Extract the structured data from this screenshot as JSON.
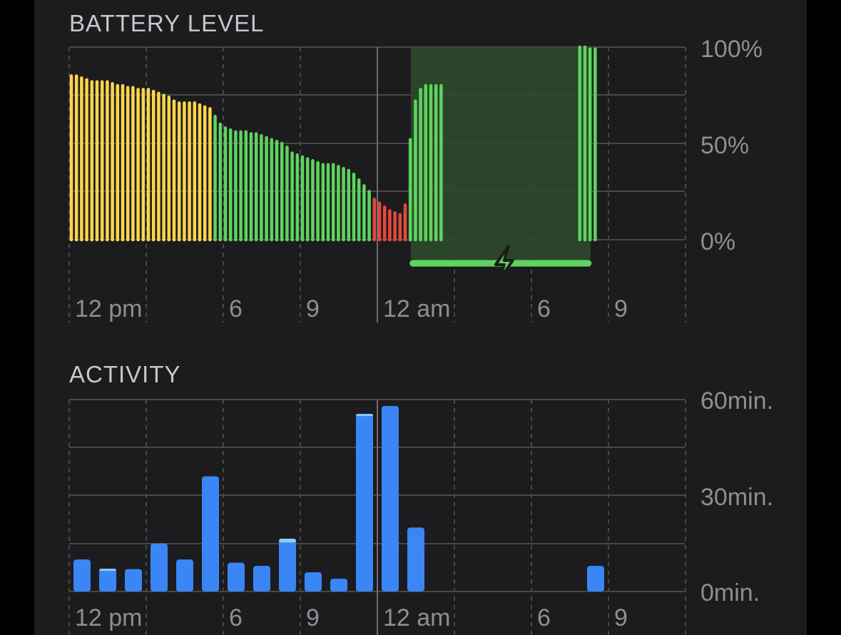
{
  "colors": {
    "background": "#1c1c1e",
    "yellow": "#fcd54b",
    "green": "#5fd35f",
    "red": "#e5483c",
    "blue": "#3a86f5",
    "light_blue": "#8ecaf9",
    "charging_fill": "#2e4a2c",
    "grid": "#48484a",
    "text": "#8e8e93"
  },
  "icons": {
    "charging": "lightning-bolt-icon"
  },
  "battery": {
    "title": "BATTERY LEVEL"
  },
  "activity": {
    "title": "ACTIVITY"
  },
  "chart_data": [
    {
      "type": "bar",
      "title": "BATTERY LEVEL",
      "x_tick_labels": [
        "12 pm",
        "6",
        "9",
        "12 am",
        "6",
        "9"
      ],
      "y_tick_labels": [
        "100%",
        "50%",
        "0%"
      ],
      "ylim": [
        0,
        100
      ],
      "x_unit": "hours",
      "x_range": [
        12,
        36
      ],
      "grid": true,
      "charging_period": {
        "start_hour": 25.3,
        "end_hour": 32.3
      },
      "series": [
        {
          "values": [
            {
              "h": 12.0,
              "v": 85,
              "c": "yellow"
            },
            {
              "h": 12.2,
              "v": 85,
              "c": "yellow"
            },
            {
              "h": 12.4,
              "v": 84,
              "c": "yellow"
            },
            {
              "h": 12.6,
              "v": 83,
              "c": "yellow"
            },
            {
              "h": 12.8,
              "v": 82,
              "c": "yellow"
            },
            {
              "h": 13.0,
              "v": 82,
              "c": "yellow"
            },
            {
              "h": 13.2,
              "v": 82,
              "c": "yellow"
            },
            {
              "h": 13.4,
              "v": 82,
              "c": "yellow"
            },
            {
              "h": 13.6,
              "v": 81,
              "c": "yellow"
            },
            {
              "h": 13.8,
              "v": 80,
              "c": "yellow"
            },
            {
              "h": 14.0,
              "v": 80,
              "c": "yellow"
            },
            {
              "h": 14.2,
              "v": 79,
              "c": "yellow"
            },
            {
              "h": 14.4,
              "v": 79,
              "c": "yellow"
            },
            {
              "h": 14.6,
              "v": 78,
              "c": "yellow"
            },
            {
              "h": 14.8,
              "v": 78,
              "c": "yellow"
            },
            {
              "h": 15.0,
              "v": 78,
              "c": "yellow"
            },
            {
              "h": 15.2,
              "v": 77,
              "c": "yellow"
            },
            {
              "h": 15.4,
              "v": 76,
              "c": "yellow"
            },
            {
              "h": 15.6,
              "v": 75,
              "c": "yellow"
            },
            {
              "h": 15.8,
              "v": 74,
              "c": "yellow"
            },
            {
              "h": 16.0,
              "v": 72,
              "c": "yellow"
            },
            {
              "h": 16.2,
              "v": 71,
              "c": "yellow"
            },
            {
              "h": 16.4,
              "v": 71,
              "c": "yellow"
            },
            {
              "h": 16.6,
              "v": 71,
              "c": "yellow"
            },
            {
              "h": 16.8,
              "v": 71,
              "c": "yellow"
            },
            {
              "h": 17.0,
              "v": 70,
              "c": "yellow"
            },
            {
              "h": 17.2,
              "v": 69,
              "c": "yellow"
            },
            {
              "h": 17.4,
              "v": 68,
              "c": "yellow"
            },
            {
              "h": 17.6,
              "v": 64,
              "c": "green"
            },
            {
              "h": 17.8,
              "v": 60,
              "c": "green"
            },
            {
              "h": 18.0,
              "v": 58,
              "c": "green"
            },
            {
              "h": 18.2,
              "v": 57,
              "c": "green"
            },
            {
              "h": 18.4,
              "v": 56,
              "c": "green"
            },
            {
              "h": 18.6,
              "v": 56,
              "c": "green"
            },
            {
              "h": 18.8,
              "v": 56,
              "c": "green"
            },
            {
              "h": 19.0,
              "v": 55,
              "c": "green"
            },
            {
              "h": 19.2,
              "v": 55,
              "c": "green"
            },
            {
              "h": 19.4,
              "v": 54,
              "c": "green"
            },
            {
              "h": 19.6,
              "v": 53,
              "c": "green"
            },
            {
              "h": 19.8,
              "v": 52,
              "c": "green"
            },
            {
              "h": 20.0,
              "v": 51,
              "c": "green"
            },
            {
              "h": 20.2,
              "v": 50,
              "c": "green"
            },
            {
              "h": 20.4,
              "v": 48,
              "c": "green"
            },
            {
              "h": 20.6,
              "v": 45,
              "c": "green"
            },
            {
              "h": 20.8,
              "v": 44,
              "c": "green"
            },
            {
              "h": 21.0,
              "v": 43,
              "c": "green"
            },
            {
              "h": 21.2,
              "v": 42,
              "c": "green"
            },
            {
              "h": 21.4,
              "v": 41,
              "c": "green"
            },
            {
              "h": 21.6,
              "v": 40,
              "c": "green"
            },
            {
              "h": 21.8,
              "v": 39,
              "c": "green"
            },
            {
              "h": 22.0,
              "v": 39,
              "c": "green"
            },
            {
              "h": 22.2,
              "v": 39,
              "c": "green"
            },
            {
              "h": 22.4,
              "v": 38,
              "c": "green"
            },
            {
              "h": 22.6,
              "v": 37,
              "c": "green"
            },
            {
              "h": 22.8,
              "v": 36,
              "c": "green"
            },
            {
              "h": 23.0,
              "v": 34,
              "c": "green"
            },
            {
              "h": 23.2,
              "v": 31,
              "c": "green"
            },
            {
              "h": 23.4,
              "v": 28,
              "c": "green"
            },
            {
              "h": 23.6,
              "v": 25,
              "c": "green"
            },
            {
              "h": 23.8,
              "v": 21,
              "c": "red"
            },
            {
              "h": 24.0,
              "v": 19,
              "c": "red"
            },
            {
              "h": 24.2,
              "v": 17,
              "c": "red"
            },
            {
              "h": 24.4,
              "v": 15,
              "c": "red"
            },
            {
              "h": 24.6,
              "v": 14,
              "c": "red"
            },
            {
              "h": 24.8,
              "v": 13,
              "c": "red"
            },
            {
              "h": 25.0,
              "v": 18,
              "c": "red"
            },
            {
              "h": 25.2,
              "v": 52,
              "c": "green"
            },
            {
              "h": 25.4,
              "v": 72,
              "c": "green"
            },
            {
              "h": 25.6,
              "v": 78,
              "c": "green"
            },
            {
              "h": 25.8,
              "v": 80,
              "c": "green"
            },
            {
              "h": 26.0,
              "v": 80,
              "c": "green"
            },
            {
              "h": 26.2,
              "v": 80,
              "c": "green"
            },
            {
              "h": 26.4,
              "v": 80,
              "c": "green"
            },
            {
              "h": 31.8,
              "v": 100,
              "c": "green"
            },
            {
              "h": 32.0,
              "v": 100,
              "c": "green"
            },
            {
              "h": 32.2,
              "v": 99,
              "c": "green"
            },
            {
              "h": 32.4,
              "v": 99,
              "c": "green"
            }
          ]
        }
      ]
    },
    {
      "type": "bar",
      "title": "ACTIVITY",
      "x_tick_labels": [
        "12 pm",
        "6",
        "9",
        "12 am",
        "6",
        "9"
      ],
      "y_tick_labels": [
        "60min.",
        "30min.",
        "0min."
      ],
      "ylim": [
        0,
        60
      ],
      "x_unit": "hours",
      "x_range": [
        12,
        36
      ],
      "grid": true,
      "series": [
        {
          "bars": [
            {
              "h": 12.5,
              "screen_on": 10,
              "screen_off": 0
            },
            {
              "h": 13.5,
              "screen_on": 6.5,
              "screen_off": 0.6
            },
            {
              "h": 14.5,
              "screen_on": 7,
              "screen_off": 0
            },
            {
              "h": 15.5,
              "screen_on": 15,
              "screen_off": 0
            },
            {
              "h": 16.5,
              "screen_on": 10,
              "screen_off": 0
            },
            {
              "h": 17.5,
              "screen_on": 36,
              "screen_off": 0
            },
            {
              "h": 18.5,
              "screen_on": 9,
              "screen_off": 0
            },
            {
              "h": 19.5,
              "screen_on": 8,
              "screen_off": 0
            },
            {
              "h": 20.5,
              "screen_on": 15.3,
              "screen_off": 1.2
            },
            {
              "h": 21.5,
              "screen_on": 6,
              "screen_off": 0
            },
            {
              "h": 22.5,
              "screen_on": 4,
              "screen_off": 0
            },
            {
              "h": 23.5,
              "screen_on": 55,
              "screen_off": 0.5
            },
            {
              "h": 24.5,
              "screen_on": 58,
              "screen_off": 0
            },
            {
              "h": 25.5,
              "screen_on": 20,
              "screen_off": 0
            },
            {
              "h": 32.5,
              "screen_on": 8,
              "screen_off": 0
            }
          ]
        }
      ]
    }
  ]
}
